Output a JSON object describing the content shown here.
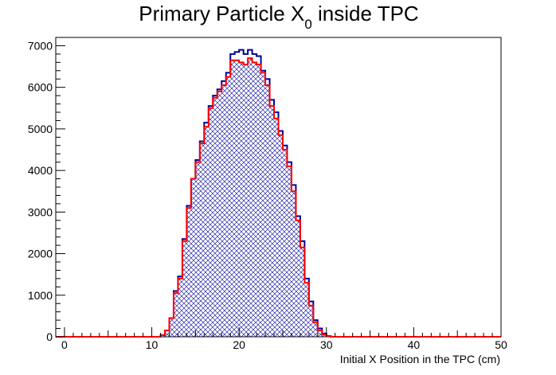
{
  "chart_data": {
    "type": "bar",
    "title": "Primary Particle X",
    "title_subscript": "0",
    "title_suffix": " inside TPC",
    "xlabel": "Initial X Position in the TPC (cm)",
    "ylabel": "",
    "xlim": [
      -1,
      50
    ],
    "ylim": [
      0,
      7200
    ],
    "bin_width": 0.5,
    "x_ticks": [
      "0",
      "10",
      "20",
      "30",
      "40",
      "50"
    ],
    "y_ticks": [
      "0",
      "1000",
      "2000",
      "3000",
      "4000",
      "5000",
      "6000",
      "7000"
    ],
    "grid": false,
    "legend": "none",
    "series": [
      {
        "color": "#000099",
        "style": "outline",
        "bins": [
          [
            11.0,
            40
          ],
          [
            11.5,
            150
          ],
          [
            12.0,
            450
          ],
          [
            12.5,
            1100
          ],
          [
            13.0,
            1450
          ],
          [
            13.5,
            2350
          ],
          [
            14.0,
            3150
          ],
          [
            14.5,
            3800
          ],
          [
            15.0,
            4250
          ],
          [
            15.5,
            4700
          ],
          [
            16.0,
            5150
          ],
          [
            16.5,
            5550
          ],
          [
            17.0,
            5800
          ],
          [
            17.5,
            5950
          ],
          [
            18.0,
            6150
          ],
          [
            18.5,
            6350
          ],
          [
            19.0,
            6800
          ],
          [
            19.5,
            6850
          ],
          [
            20.0,
            6900
          ],
          [
            20.5,
            6800
          ],
          [
            21.0,
            6900
          ],
          [
            21.5,
            6800
          ],
          [
            22.0,
            6750
          ],
          [
            22.5,
            6400
          ],
          [
            23.0,
            6200
          ],
          [
            23.5,
            5700
          ],
          [
            24.0,
            5400
          ],
          [
            24.5,
            4950
          ],
          [
            25.0,
            4600
          ],
          [
            25.5,
            4200
          ],
          [
            26.0,
            3650
          ],
          [
            26.5,
            2900
          ],
          [
            27.0,
            2300
          ],
          [
            27.5,
            1400
          ],
          [
            28.0,
            850
          ],
          [
            28.5,
            400
          ],
          [
            29.0,
            200
          ],
          [
            29.5,
            80
          ],
          [
            30.0,
            20
          ]
        ]
      },
      {
        "color": "#ff0000",
        "style": "hatched",
        "hatch_color": "#000099",
        "bins": [
          [
            11.0,
            40
          ],
          [
            11.5,
            150
          ],
          [
            12.0,
            450
          ],
          [
            12.5,
            1050
          ],
          [
            13.0,
            1400
          ],
          [
            13.5,
            2300
          ],
          [
            14.0,
            3100
          ],
          [
            14.5,
            3800
          ],
          [
            15.0,
            4200
          ],
          [
            15.5,
            4650
          ],
          [
            16.0,
            5050
          ],
          [
            16.5,
            5500
          ],
          [
            17.0,
            5750
          ],
          [
            17.5,
            5900
          ],
          [
            18.0,
            6050
          ],
          [
            18.5,
            6250
          ],
          [
            19.0,
            6650
          ],
          [
            19.5,
            6650
          ],
          [
            20.0,
            6600
          ],
          [
            20.5,
            6550
          ],
          [
            21.0,
            6700
          ],
          [
            21.5,
            6600
          ],
          [
            22.0,
            6550
          ],
          [
            22.5,
            6350
          ],
          [
            23.0,
            6050
          ],
          [
            23.5,
            5550
          ],
          [
            24.0,
            5250
          ],
          [
            24.5,
            4850
          ],
          [
            25.0,
            4500
          ],
          [
            25.5,
            4100
          ],
          [
            26.0,
            3500
          ],
          [
            26.5,
            2800
          ],
          [
            27.0,
            2150
          ],
          [
            27.5,
            1300
          ],
          [
            28.0,
            750
          ],
          [
            28.5,
            350
          ],
          [
            29.0,
            150
          ],
          [
            29.5,
            50
          ],
          [
            30.0,
            15
          ]
        ]
      }
    ]
  }
}
